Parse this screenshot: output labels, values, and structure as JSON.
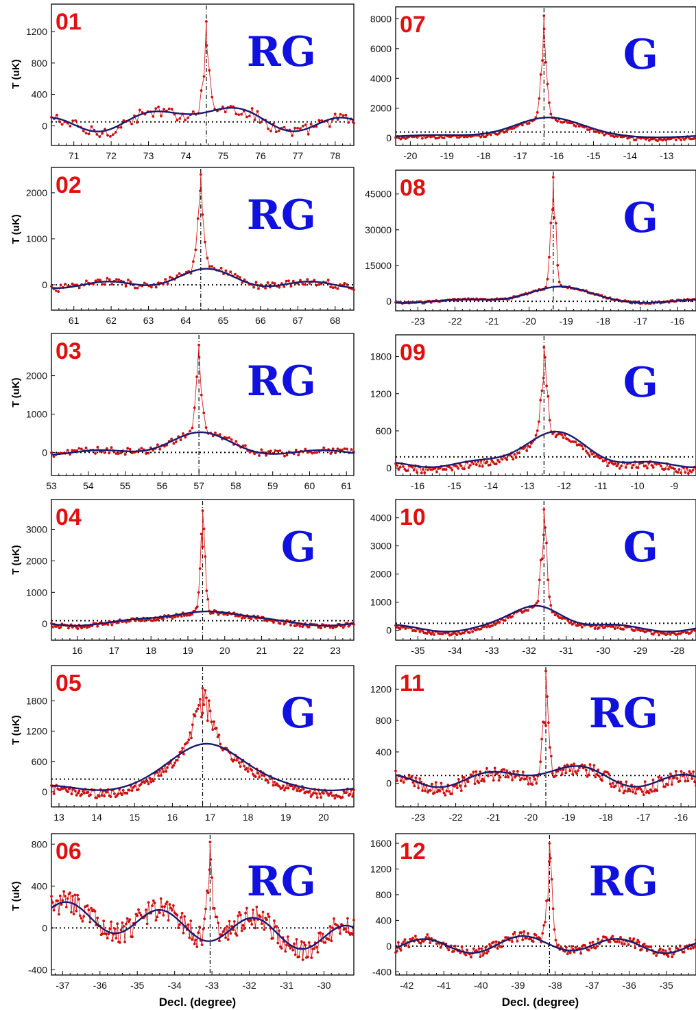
{
  "figure": {
    "ylabel": "T (uK)",
    "xlabel": "Decl. (degree)"
  },
  "colors": {
    "raw": "#d42020",
    "raw_marker": "#cc1010",
    "fit": "#1a1a6e",
    "fit_dots": "#3030b0",
    "label_number": "#e01010",
    "label_class": "#1010e0",
    "frame": "#000000"
  },
  "chart_data": [
    {
      "type": "line",
      "label": "01",
      "class": "RG",
      "xlim": [
        70.4,
        78.5
      ],
      "ylim": [
        -250,
        1550
      ],
      "xticks": [
        71,
        72,
        73,
        74,
        75,
        76,
        77,
        78
      ],
      "yticks": [
        0,
        400,
        800,
        1200
      ],
      "peak_x": 74.55,
      "peak_y": 1330,
      "peak_w": 0.1,
      "baseline": 50,
      "noise": 80,
      "points_per_deg": 14,
      "fit_amp": 230,
      "fit_center": 74.4,
      "fit_sigma": 0.9,
      "fit_wave": 90,
      "fit_period": 2.6,
      "fit_phase": 1.2
    },
    {
      "type": "line",
      "label": "07",
      "class": "G",
      "xlim": [
        -20.4,
        -12.2
      ],
      "ylim": [
        -500,
        8800
      ],
      "xticks": [
        -20,
        -19,
        -18,
        -17,
        -16,
        -15,
        -14,
        -13
      ],
      "yticks": [
        0,
        2000,
        4000,
        6000,
        8000
      ],
      "peak_x": -16.35,
      "peak_y": 8200,
      "peak_w": 0.08,
      "baseline": 400,
      "noise": 120,
      "points_per_deg": 22,
      "fit_amp": 1250,
      "fit_center": -16.3,
      "fit_sigma": 0.9,
      "fit_wave": 80,
      "fit_period": 4,
      "fit_phase": 0.5
    },
    {
      "type": "line",
      "label": "02",
      "class": "RG",
      "xlim": [
        60.4,
        68.5
      ],
      "ylim": [
        -550,
        2550
      ],
      "xticks": [
        61,
        62,
        63,
        64,
        65,
        66,
        67,
        68
      ],
      "yticks": [
        0,
        1000,
        2000
      ],
      "peak_x": 64.4,
      "peak_y": 2400,
      "peak_w": 0.09,
      "baseline": 0,
      "noise": 80,
      "points_per_deg": 16,
      "fit_amp": 280,
      "fit_center": 64.5,
      "fit_sigma": 0.8,
      "fit_wave": 70,
      "fit_period": 2.7,
      "fit_phase": 2.0
    },
    {
      "type": "line",
      "label": "08",
      "class": "G",
      "xlim": [
        -23.6,
        -15.5
      ],
      "ylim": [
        -4000,
        55000
      ],
      "xticks": [
        -23,
        -22,
        -21,
        -20,
        -19,
        -18,
        -17,
        -16
      ],
      "yticks": [
        0,
        15000,
        30000,
        45000
      ],
      "peak_x": -19.35,
      "peak_y": 52000,
      "peak_w": 0.07,
      "baseline": 0,
      "noise": 400,
      "points_per_deg": 22,
      "fit_amp": 6000,
      "fit_center": -19.3,
      "fit_sigma": 0.8,
      "fit_wave": 700,
      "fit_period": 3.2,
      "fit_phase": 0.3
    },
    {
      "type": "line",
      "label": "03",
      "class": "RG",
      "xlim": [
        53.0,
        61.2
      ],
      "ylim": [
        -600,
        3100
      ],
      "xticks": [
        53,
        54,
        55,
        56,
        57,
        58,
        59,
        60,
        61
      ],
      "yticks": [
        0,
        1000,
        2000
      ],
      "peak_x": 57.0,
      "peak_y": 2800,
      "peak_w": 0.08,
      "baseline": 0,
      "noise": 90,
      "points_per_deg": 16,
      "fit_amp": 480,
      "fit_center": 56.95,
      "fit_sigma": 0.8,
      "fit_wave": 60,
      "fit_period": 3.0,
      "fit_phase": 0.9
    },
    {
      "type": "line",
      "label": "09",
      "class": "G",
      "xlim": [
        -16.6,
        -8.4
      ],
      "ylim": [
        -120,
        2150
      ],
      "xticks": [
        -16,
        -15,
        -14,
        -13,
        -12,
        -11,
        -10,
        -9
      ],
      "yticks": [
        0,
        600,
        1200,
        1800
      ],
      "peak_x": -12.55,
      "peak_y": 1950,
      "peak_w": 0.09,
      "baseline": 180,
      "noise": 60,
      "points_per_deg": 24,
      "fit_amp": 500,
      "fit_center": -12.3,
      "fit_sigma": 0.9,
      "fit_wave": 40,
      "fit_period": 2.4,
      "fit_phase": 1.7
    },
    {
      "type": "line",
      "label": "04",
      "class": "G",
      "xlim": [
        15.3,
        23.5
      ],
      "ylim": [
        -520,
        3950
      ],
      "xticks": [
        16,
        17,
        18,
        19,
        20,
        21,
        22,
        23
      ],
      "yticks": [
        0,
        1000,
        2000,
        3000
      ],
      "peak_x": 19.4,
      "peak_y": 3600,
      "peak_w": 0.07,
      "baseline": 100,
      "noise": 70,
      "points_per_deg": 28,
      "fit_amp": 450,
      "fit_center": 19.45,
      "fit_sigma": 0.8,
      "fit_wave": 90,
      "fit_period": 3.4,
      "fit_phase": 0.4
    },
    {
      "type": "line",
      "label": "10",
      "class": "G",
      "xlim": [
        -35.6,
        -27.5
      ],
      "ylim": [
        -350,
        4650
      ],
      "xticks": [
        -35,
        -34,
        -33,
        -32,
        -31,
        -30,
        -29,
        -28
      ],
      "yticks": [
        0,
        1000,
        2000,
        3000,
        4000
      ],
      "peak_x": -31.6,
      "peak_y": 4300,
      "peak_w": 0.08,
      "baseline": 250,
      "noise": 70,
      "points_per_deg": 26,
      "fit_amp": 850,
      "fit_center": -31.7,
      "fit_sigma": 0.65,
      "fit_wave": 120,
      "fit_period": 3.0,
      "fit_phase": 1.0
    },
    {
      "type": "line",
      "label": "05",
      "class": "G",
      "xlim": [
        12.8,
        20.8
      ],
      "ylim": [
        -300,
        2500
      ],
      "xticks": [
        13,
        14,
        15,
        16,
        17,
        18,
        19,
        20
      ],
      "yticks": [
        0,
        600,
        1200,
        1800
      ],
      "peak_x": 16.8,
      "peak_y": 2050,
      "peak_w": 0.25,
      "baseline": 250,
      "noise": 90,
      "points_per_deg": 30,
      "fit_amp": 920,
      "fit_center": 16.95,
      "fit_sigma": 0.9,
      "fit_wave": 50,
      "fit_period": 3.0,
      "fit_phase": 0.2
    },
    {
      "type": "line",
      "label": "11",
      "class": "RG",
      "xlim": [
        -23.6,
        -15.6
      ],
      "ylim": [
        -300,
        1500
      ],
      "xticks": [
        -23,
        -22,
        -21,
        -20,
        -19,
        -18,
        -17,
        -16
      ],
      "yticks": [
        0,
        400,
        800,
        1200
      ],
      "peak_x": -19.6,
      "peak_y": 1430,
      "peak_w": 0.08,
      "baseline": 100,
      "noise": 90,
      "points_per_deg": 28,
      "fit_amp": 170,
      "fit_center": -19.5,
      "fit_sigma": 0.9,
      "fit_wave": 80,
      "fit_period": 2.6,
      "fit_phase": 2.4
    },
    {
      "type": "line",
      "label": "06",
      "class": "RG",
      "xlim": [
        -37.3,
        -29.2
      ],
      "ylim": [
        -450,
        900
      ],
      "xticks": [
        -37,
        -36,
        -35,
        -34,
        -33,
        -32,
        -31,
        -30
      ],
      "yticks": [
        -400,
        0,
        400,
        800
      ],
      "peak_x": -33.05,
      "peak_y": 820,
      "peak_w": 0.1,
      "baseline": 0,
      "noise": 110,
      "points_per_deg": 30,
      "fit_amp": 0,
      "fit_center": -33.0,
      "fit_sigma": 1.0,
      "fit_wave": 130,
      "fit_period": 2.5,
      "fit_phase": 0.0,
      "fit_trend": -30
    },
    {
      "type": "line",
      "label": "12",
      "class": "RG",
      "xlim": [
        -42.3,
        -34.2
      ],
      "ylim": [
        -450,
        1750
      ],
      "xticks": [
        -42,
        -41,
        -40,
        -39,
        -38,
        -37,
        -36,
        -35
      ],
      "yticks": [
        -400,
        0,
        400,
        800,
        1200,
        1600
      ],
      "peak_x": -38.15,
      "peak_y": 1600,
      "peak_w": 0.08,
      "baseline": 0,
      "noise": 75,
      "points_per_deg": 28,
      "fit_amp": 60,
      "fit_center": -38.3,
      "fit_sigma": 0.8,
      "fit_wave": 110,
      "fit_period": 2.6,
      "fit_phase": 1.4
    }
  ]
}
